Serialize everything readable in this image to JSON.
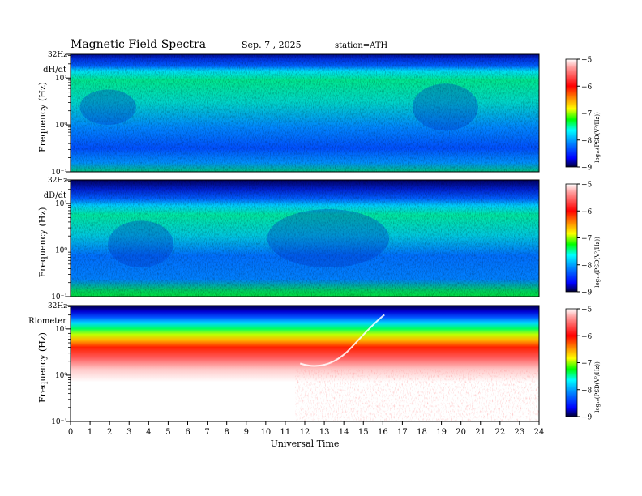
{
  "header": {
    "title": "Magnetic  Field  Spectra",
    "date": "Sep. 7  , 2025",
    "station": "station=ATH"
  },
  "chart_data": [
    {
      "type": "heatmap",
      "panel_label": "dH/dt",
      "ylabel": "Frequency  (Hz)",
      "ytick_labels": [
        "32Hz",
        "10¹",
        "10⁰",
        "10⁻¹"
      ],
      "ylim": [
        0.1,
        32
      ],
      "yscale": "log",
      "xlim": [
        0,
        24
      ],
      "colorbar": {
        "label": "log₁₀(PSD(V²/Hz))",
        "ticks": [
          -5,
          -6,
          -7,
          -8,
          -9
        ],
        "range": [
          -9,
          -5
        ]
      }
    },
    {
      "type": "heatmap",
      "panel_label": "dD/dt",
      "ylabel": "Frequency  (Hz)",
      "ytick_labels": [
        "32Hz",
        "10¹",
        "10⁰",
        "10⁻¹"
      ],
      "ylim": [
        0.1,
        32
      ],
      "yscale": "log",
      "xlim": [
        0,
        24
      ],
      "colorbar": {
        "label": "log₁₀(PSD(V²/Hz))",
        "ticks": [
          -5,
          -6,
          -7,
          -8,
          -9
        ],
        "range": [
          -9,
          -5
        ]
      }
    },
    {
      "type": "heatmap",
      "panel_label": "Riometer",
      "ylabel": "Frequency  (Hz)",
      "ytick_labels": [
        "32Hz",
        "10¹",
        "10⁰",
        "10⁻¹"
      ],
      "ylim": [
        0.1,
        32
      ],
      "yscale": "log",
      "xlim": [
        0,
        24
      ],
      "xlabel": "Universal  Time",
      "xticks": [
        0,
        1,
        2,
        3,
        4,
        5,
        6,
        7,
        8,
        9,
        10,
        11,
        12,
        13,
        14,
        15,
        16,
        17,
        18,
        19,
        20,
        21,
        22,
        23,
        24
      ],
      "colorbar": {
        "label": "log₁₀(PSD(V²/Hz))",
        "ticks": [
          -5,
          -6,
          -7,
          -8,
          -9
        ],
        "range": [
          -9,
          -5
        ]
      }
    }
  ],
  "colors": {
    "colorbar_top": "#ffffff",
    "red": "#ff0000",
    "yellow": "#ffff00",
    "green": "#00ff00",
    "cyan": "#00ffff",
    "blue": "#0000ff",
    "colorbar_bottom": "#000030"
  }
}
